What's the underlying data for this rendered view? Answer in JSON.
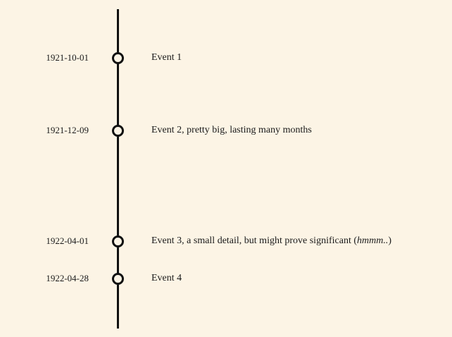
{
  "colors": {
    "background": "#fcf4e5",
    "line": "#111111"
  },
  "events": [
    {
      "date": "1921-10-01",
      "label": "Event 1"
    },
    {
      "date": "1921-12-09",
      "label": "Event 2, pretty big, lasting many months"
    },
    {
      "date": "1922-04-01",
      "label_before": "Event 3, a small detail, but might prove significant (",
      "label_em": "hmmm..",
      "label_after": ")"
    },
    {
      "date": "1922-04-28",
      "label": "Event 4"
    }
  ]
}
